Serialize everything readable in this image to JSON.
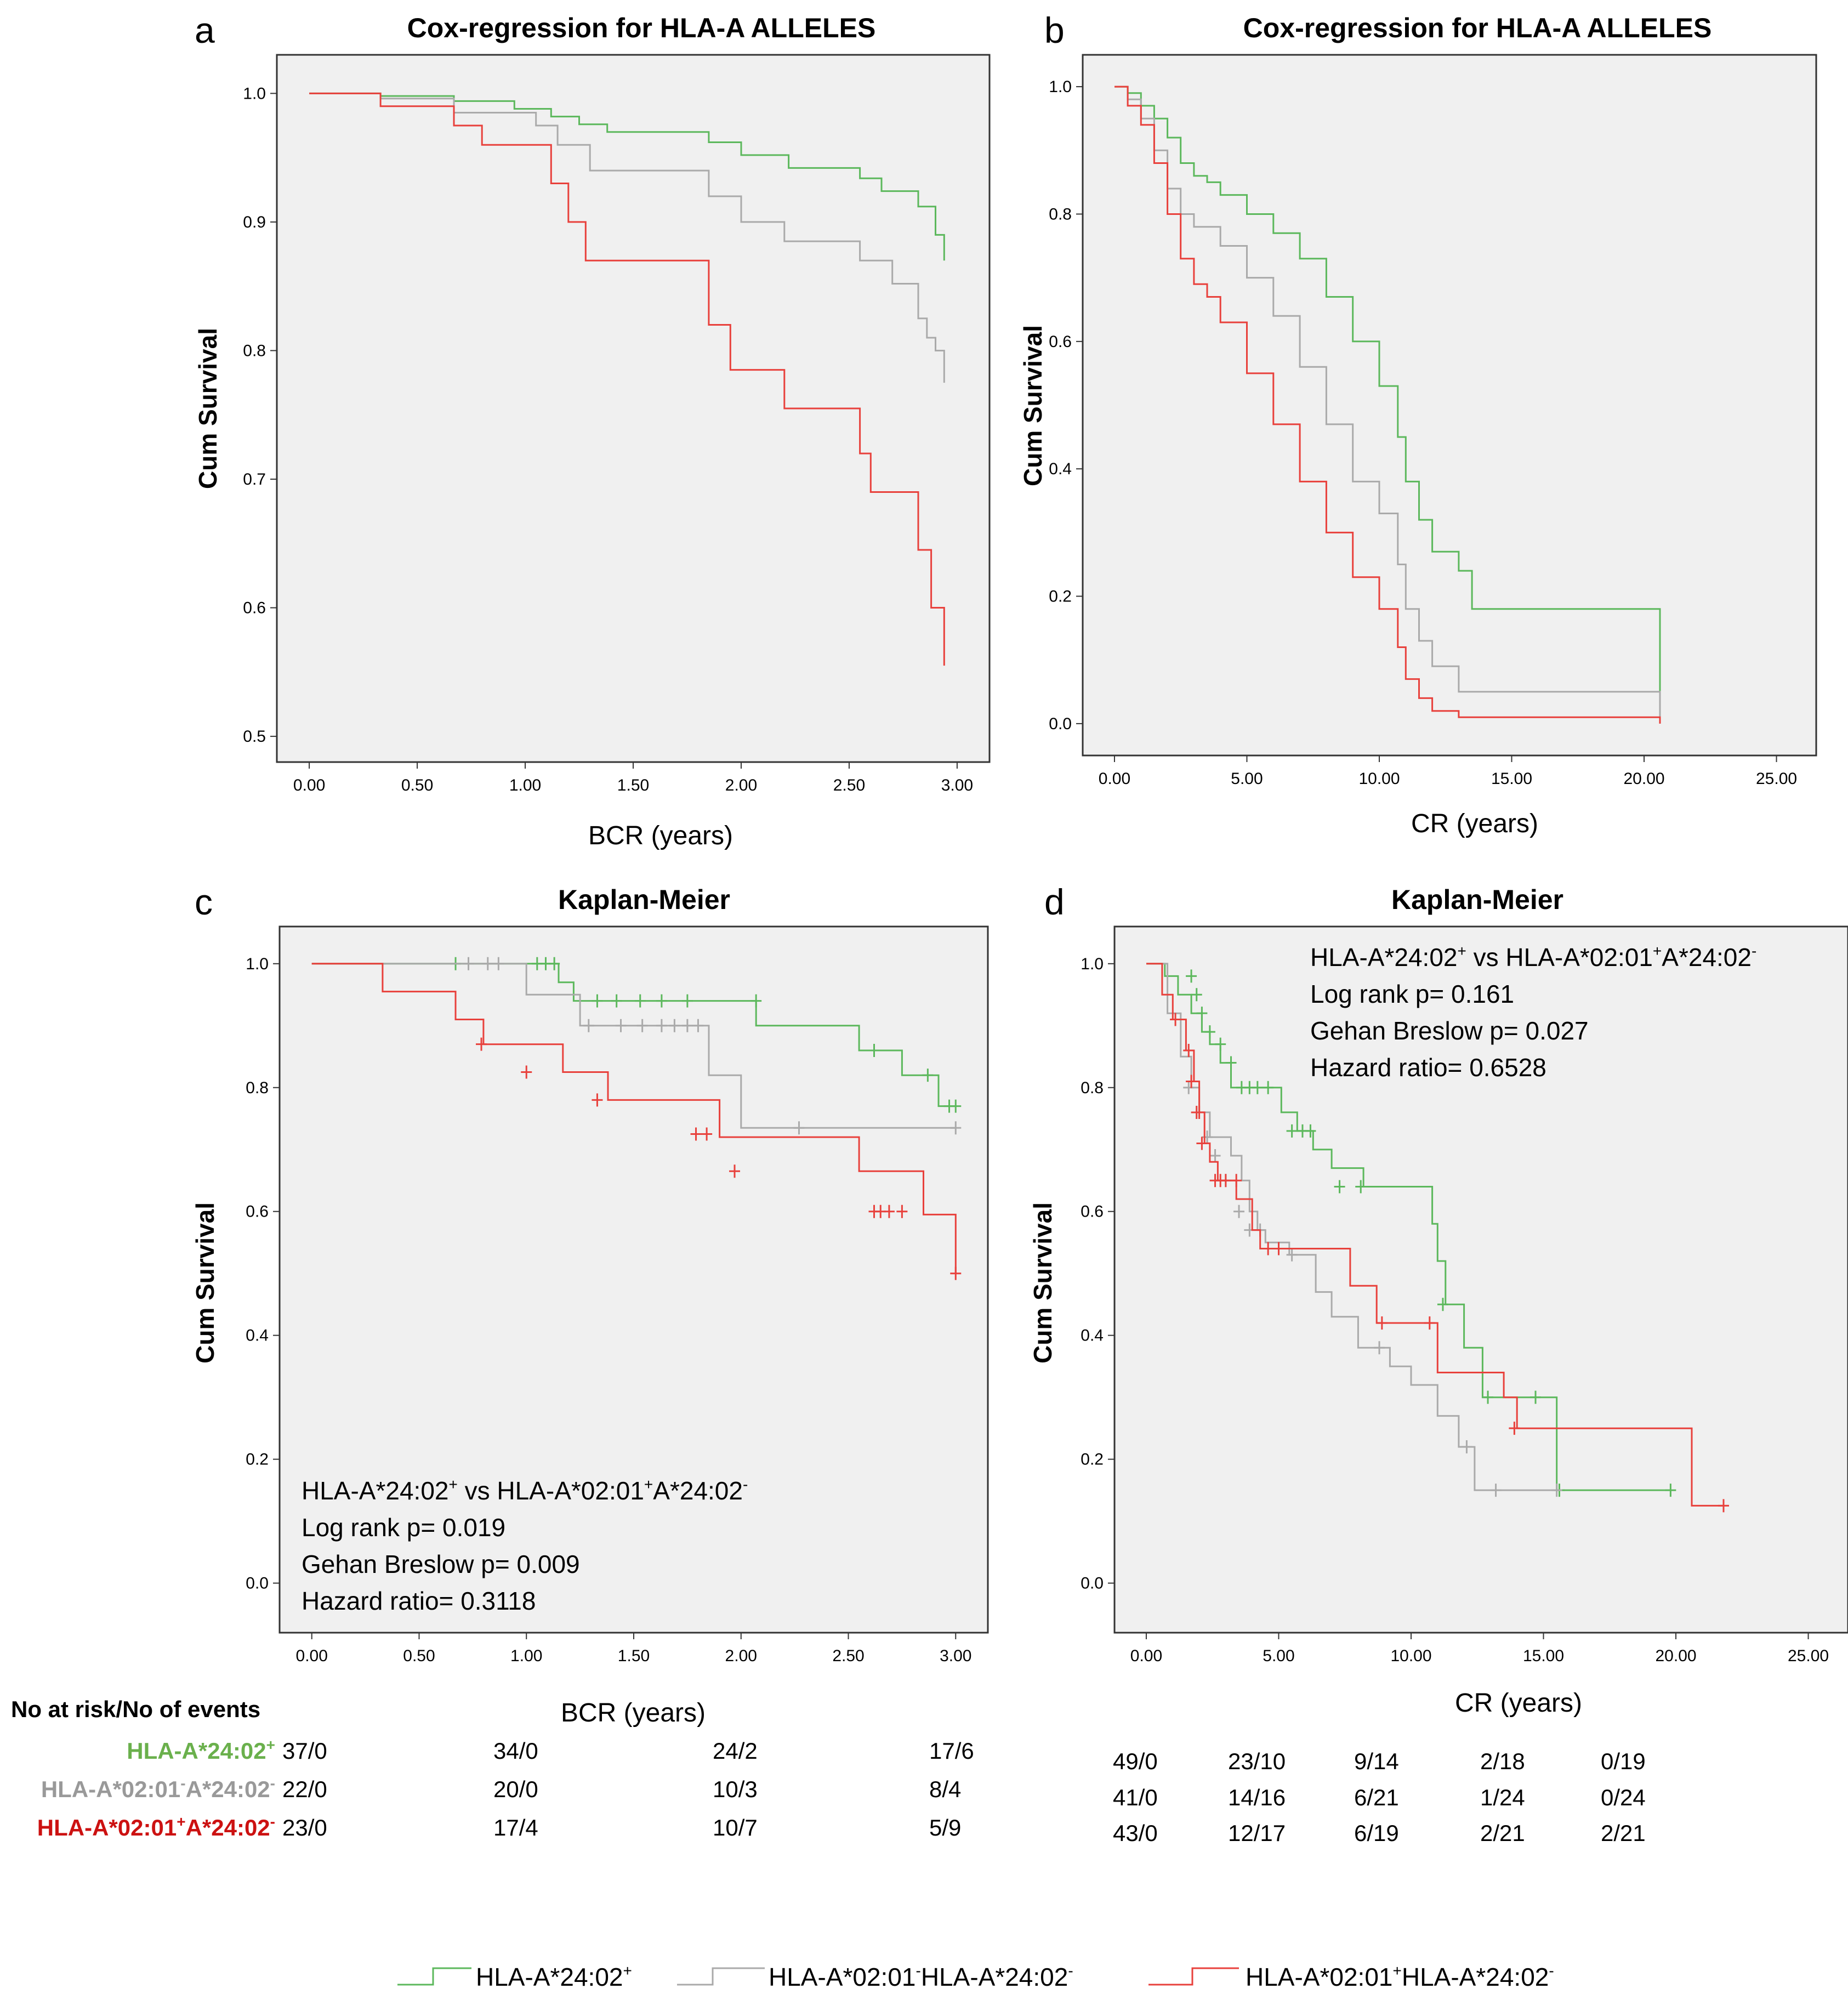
{
  "panels": {
    "a": {
      "letter": "a",
      "title": "Cox-regression for HLA-A ALLELES"
    },
    "b": {
      "letter": "b",
      "title": "Cox-regression for HLA-A ALLELES"
    },
    "c": {
      "letter": "c",
      "title": "Kaplan-Meier"
    },
    "d": {
      "letter": "d",
      "title": "Kaplan-Meier"
    }
  },
  "ylabel": "Cum Survival",
  "xlabel_bcr": "BCR (years)",
  "xlabel_cr": "CR (years)",
  "stats_c": {
    "comparison_parts": [
      "HLA-A*24:02",
      "+",
      " vs HLA-A*02:01",
      "+",
      "A*24:02",
      "-"
    ],
    "logrank": "Log rank p= 0.019",
    "gehan": "Gehan Breslow p= 0.009",
    "hazard": "Hazard ratio= 0.3118"
  },
  "stats_d": {
    "comparison_parts": [
      "HLA-A*24:02",
      "+",
      " vs HLA-A*02:01",
      "+",
      "A*24:02",
      "-"
    ],
    "logrank": "Log rank p= 0.161",
    "gehan": "Gehan Breslow p= 0.027",
    "hazard": "Hazard ratio= 0.6528"
  },
  "risk_table": {
    "header": "No at risk/No of events",
    "rows": [
      {
        "label_parts": [
          "HLA-A*24:02",
          "+"
        ],
        "color": "#6ab04c"
      },
      {
        "label_parts": [
          "HLA-A*02:01",
          "-",
          "A*24:02",
          "-"
        ],
        "color": "#999999"
      },
      {
        "label_parts": [
          "HLA-A*02:01",
          "+",
          "A*24:02",
          "-"
        ],
        "color": "#cc1111"
      }
    ],
    "bcr": [
      [
        "37/0",
        "34/0",
        "24/2",
        "17/6"
      ],
      [
        "22/0",
        "20/0",
        "10/3",
        "8/4"
      ],
      [
        "23/0",
        "17/4",
        "10/7",
        "5/9"
      ]
    ],
    "cr": [
      [
        "49/0",
        "23/10",
        "9/14",
        "2/18",
        "0/19"
      ],
      [
        "41/0",
        "14/16",
        "6/21",
        "1/24",
        "0/24"
      ],
      [
        "43/0",
        "12/17",
        "6/19",
        "2/21",
        "2/21"
      ]
    ]
  },
  "legend": [
    {
      "label_parts": [
        "HLA-A*24:02",
        "+"
      ],
      "color": "#5cb85c"
    },
    {
      "label_parts": [
        "HLA-A*02:01",
        "-",
        "HLA-A*24:02",
        "-"
      ],
      "color": "#aaaaaa"
    },
    {
      "label_parts": [
        "HLA-A*02:01",
        "+",
        "HLA-A*24:02",
        "-"
      ],
      "color": "#e8413c"
    }
  ],
  "colors": {
    "green": "#5cb85c",
    "grey": "#aaaaaa",
    "red": "#e8413c",
    "plot_bg": "#f0f0f0"
  },
  "chart_data": [
    {
      "id": "a",
      "type": "line",
      "step": true,
      "title": "Cox-regression for HLA-A ALLELES",
      "xlabel": "BCR (years)",
      "ylabel": "Cum Survival",
      "xlim": [
        -0.15,
        3.15
      ],
      "ylim": [
        0.48,
        1.03
      ],
      "xticks": [
        0,
        0.5,
        1,
        1.5,
        2,
        2.5,
        3
      ],
      "xtick_labels": [
        "0.00",
        "0.50",
        "1.00",
        "1.50",
        "2.00",
        "2.50",
        "3.00"
      ],
      "yticks": [
        0.5,
        0.6,
        0.7,
        0.8,
        0.9,
        1.0
      ],
      "ytick_labels": [
        "0.5",
        "0.6",
        "0.7",
        "0.8",
        "0.9",
        "1.0"
      ],
      "series": [
        {
          "name": "HLA-A*24:02+",
          "color": "green",
          "x": [
            0,
            0.33,
            0.67,
            0.95,
            1.12,
            1.25,
            1.38,
            1.85,
            2.0,
            2.22,
            2.55,
            2.65,
            2.82,
            2.9,
            2.94
          ],
          "y": [
            1.0,
            0.998,
            0.994,
            0.988,
            0.982,
            0.976,
            0.97,
            0.962,
            0.952,
            0.942,
            0.934,
            0.924,
            0.912,
            0.89,
            0.87
          ]
        },
        {
          "name": "HLA-A*02:01-A*24:02-",
          "color": "grey",
          "x": [
            0,
            0.33,
            0.67,
            1.05,
            1.15,
            1.3,
            1.85,
            2.0,
            2.2,
            2.55,
            2.7,
            2.82,
            2.86,
            2.9,
            2.94
          ],
          "y": [
            1.0,
            0.996,
            0.985,
            0.975,
            0.96,
            0.94,
            0.92,
            0.9,
            0.885,
            0.87,
            0.852,
            0.825,
            0.81,
            0.8,
            0.775
          ]
        },
        {
          "name": "HLA-A*02:01+A*24:02-",
          "color": "red",
          "x": [
            0,
            0.33,
            0.67,
            0.8,
            1.12,
            1.2,
            1.28,
            1.4,
            1.85,
            1.95,
            2.2,
            2.55,
            2.6,
            2.82,
            2.88,
            2.94
          ],
          "y": [
            1.0,
            0.99,
            0.975,
            0.96,
            0.93,
            0.9,
            0.87,
            0.87,
            0.82,
            0.785,
            0.755,
            0.72,
            0.69,
            0.645,
            0.6,
            0.555
          ]
        }
      ]
    },
    {
      "id": "b",
      "type": "line",
      "step": true,
      "title": "Cox-regression for HLA-A ALLELES",
      "xlabel": "CR (years)",
      "ylabel": "Cum Survival",
      "xlim": [
        -1.2,
        26.5
      ],
      "ylim": [
        -0.05,
        1.05
      ],
      "xticks": [
        0,
        5,
        10,
        15,
        20,
        25
      ],
      "xtick_labels": [
        "0.00",
        "5.00",
        "10.00",
        "15.00",
        "20.00",
        "25.00"
      ],
      "yticks": [
        0.0,
        0.2,
        0.4,
        0.6,
        0.8,
        1.0
      ],
      "ytick_labels": [
        "0.0",
        "0.2",
        "0.4",
        "0.6",
        "0.8",
        "1.0"
      ],
      "series": [
        {
          "name": "HLA-A*24:02+",
          "color": "green",
          "x": [
            0,
            0.5,
            1,
            1.5,
            2,
            2.5,
            3,
            3.5,
            4,
            5,
            6,
            7,
            8,
            9,
            10,
            10.7,
            11,
            11.5,
            12,
            13,
            13.5,
            20.6
          ],
          "y": [
            1.0,
            0.99,
            0.97,
            0.95,
            0.92,
            0.88,
            0.86,
            0.85,
            0.83,
            0.8,
            0.77,
            0.73,
            0.67,
            0.6,
            0.53,
            0.45,
            0.38,
            0.32,
            0.27,
            0.24,
            0.18,
            0.0
          ]
        },
        {
          "name": "HLA-A*02:01-A*24:02-",
          "color": "grey",
          "x": [
            0,
            0.5,
            1,
            1.5,
            2,
            2.5,
            3,
            4,
            5,
            6,
            7,
            8,
            9,
            10,
            10.7,
            11,
            11.5,
            12,
            13,
            20.6
          ],
          "y": [
            1.0,
            0.98,
            0.95,
            0.9,
            0.84,
            0.8,
            0.78,
            0.75,
            0.7,
            0.64,
            0.56,
            0.47,
            0.38,
            0.33,
            0.25,
            0.18,
            0.13,
            0.09,
            0.05,
            0.0
          ]
        },
        {
          "name": "HLA-A*02:01+A*24:02-",
          "color": "red",
          "x": [
            0,
            0.5,
            1,
            1.5,
            2,
            2.5,
            3,
            3.5,
            4,
            5,
            6,
            7,
            8,
            9,
            10,
            10.7,
            11,
            11.5,
            12,
            13,
            20.6
          ],
          "y": [
            1.0,
            0.97,
            0.94,
            0.88,
            0.8,
            0.73,
            0.69,
            0.67,
            0.63,
            0.55,
            0.47,
            0.38,
            0.3,
            0.23,
            0.18,
            0.12,
            0.07,
            0.04,
            0.02,
            0.01,
            0.0
          ]
        }
      ]
    },
    {
      "id": "c",
      "type": "line",
      "step": true,
      "title": "Kaplan-Meier",
      "xlabel": "BCR (years)",
      "ylabel": "Cum Survival",
      "xlim": [
        -0.15,
        3.15
      ],
      "ylim": [
        -0.08,
        1.06
      ],
      "xticks": [
        0,
        0.5,
        1,
        1.5,
        2,
        2.5,
        3
      ],
      "xtick_labels": [
        "0.00",
        "0.50",
        "1.00",
        "1.50",
        "2.00",
        "2.50",
        "3.00"
      ],
      "yticks": [
        0.0,
        0.2,
        0.4,
        0.6,
        0.8,
        1.0
      ],
      "ytick_labels": [
        "0.0",
        "0.2",
        "0.4",
        "0.6",
        "0.8",
        "1.0"
      ],
      "series": [
        {
          "name": "HLA-A*24:02+",
          "color": "green",
          "x": [
            0,
            1.15,
            1.22,
            2.07,
            2.55,
            2.75,
            2.92,
            3.0
          ],
          "y": [
            1.0,
            0.97,
            0.94,
            0.9,
            0.86,
            0.82,
            0.77,
            0.77
          ],
          "censor_x": [
            0.67,
            1.05,
            1.09,
            1.13,
            1.33,
            1.42,
            1.53,
            1.63,
            1.75,
            2.07,
            2.62,
            2.87,
            2.97,
            3.0
          ],
          "censor_y": [
            1.0,
            1.0,
            1.0,
            1.0,
            0.94,
            0.94,
            0.94,
            0.94,
            0.94,
            0.94,
            0.86,
            0.82,
            0.77,
            0.77
          ]
        },
        {
          "name": "HLA-A*02:01-A*24:02-",
          "color": "grey",
          "x": [
            0,
            1.0,
            1.25,
            1.85,
            2.0,
            3.0
          ],
          "y": [
            1.0,
            0.95,
            0.9,
            0.82,
            0.735,
            0.735
          ],
          "censor_x": [
            0.73,
            0.82,
            0.87,
            1.29,
            1.44,
            1.54,
            1.63,
            1.69,
            1.75,
            1.8,
            2.27,
            3.0
          ],
          "censor_y": [
            1.0,
            1.0,
            1.0,
            0.9,
            0.9,
            0.9,
            0.9,
            0.9,
            0.9,
            0.9,
            0.735,
            0.735
          ]
        },
        {
          "name": "HLA-A*02:01+A*24:02-",
          "color": "red",
          "x": [
            0,
            0.33,
            0.67,
            0.8,
            1.17,
            1.38,
            1.9,
            2.55,
            2.85,
            3.0
          ],
          "y": [
            1.0,
            0.955,
            0.91,
            0.87,
            0.825,
            0.78,
            0.72,
            0.665,
            0.595,
            0.5
          ],
          "censor_x": [
            0.79,
            1.0,
            1.33,
            1.79,
            1.84,
            1.97,
            2.62,
            2.65,
            2.69,
            2.75,
            3.0
          ],
          "censor_y": [
            0.87,
            0.825,
            0.78,
            0.725,
            0.725,
            0.665,
            0.6,
            0.6,
            0.6,
            0.6,
            0.5
          ]
        }
      ]
    },
    {
      "id": "d",
      "type": "line",
      "step": true,
      "title": "Kaplan-Meier",
      "xlabel": "CR (years)",
      "ylabel": "Cum Survival",
      "xlim": [
        -1.2,
        26.5
      ],
      "ylim": [
        -0.08,
        1.06
      ],
      "xticks": [
        0,
        5,
        10,
        15,
        20,
        25
      ],
      "xtick_labels": [
        "0.00",
        "5.00",
        "10.00",
        "15.00",
        "20.00",
        "25.00"
      ],
      "yticks": [
        0.0,
        0.2,
        0.4,
        0.6,
        0.8,
        1.0
      ],
      "ytick_labels": [
        "0.0",
        "0.2",
        "0.4",
        "0.6",
        "0.8",
        "1.0"
      ],
      "series": [
        {
          "name": "HLA-A*24:02+",
          "color": "green",
          "x": [
            0,
            0.7,
            1.2,
            1.7,
            2.1,
            2.4,
            2.8,
            3.2,
            4.5,
            5.1,
            5.7,
            6.3,
            7.0,
            8.2,
            10.8,
            11.0,
            11.3,
            12.0,
            12.7,
            15.5,
            19.8
          ],
          "y": [
            1.0,
            0.98,
            0.95,
            0.92,
            0.89,
            0.87,
            0.84,
            0.8,
            0.8,
            0.76,
            0.73,
            0.7,
            0.67,
            0.64,
            0.58,
            0.52,
            0.45,
            0.38,
            0.3,
            0.15,
            0.15
          ],
          "censor_x": [
            1.7,
            1.9,
            2.1,
            2.4,
            2.8,
            3.2,
            3.6,
            3.9,
            4.2,
            4.6,
            5.5,
            5.9,
            6.2,
            7.3,
            8.1,
            11.2,
            12.9,
            14.7,
            15.6,
            19.8
          ],
          "censor_y": [
            0.98,
            0.95,
            0.92,
            0.89,
            0.87,
            0.84,
            0.8,
            0.8,
            0.8,
            0.8,
            0.73,
            0.73,
            0.73,
            0.64,
            0.64,
            0.45,
            0.3,
            0.3,
            0.15,
            0.15
          ]
        },
        {
          "name": "HLA-A*02:01-A*24:02-",
          "color": "grey",
          "x": [
            0,
            0.8,
            1.3,
            1.7,
            2.0,
            2.4,
            3.2,
            3.6,
            3.9,
            4.2,
            4.5,
            5.4,
            6.4,
            7.0,
            8.0,
            9.2,
            10.0,
            11.0,
            11.8,
            12.4,
            15.5
          ],
          "y": [
            1.0,
            0.92,
            0.85,
            0.8,
            0.76,
            0.72,
            0.69,
            0.65,
            0.6,
            0.57,
            0.55,
            0.53,
            0.47,
            0.43,
            0.38,
            0.35,
            0.32,
            0.27,
            0.22,
            0.15,
            0.15
          ],
          "censor_x": [
            1.6,
            1.9,
            2.3,
            2.6,
            3.0,
            3.5,
            3.9,
            4.3,
            5.5,
            8.8,
            12.1,
            13.2,
            15.5
          ],
          "censor_y": [
            0.8,
            0.76,
            0.72,
            0.69,
            0.65,
            0.6,
            0.57,
            0.57,
            0.53,
            0.38,
            0.22,
            0.15,
            0.15
          ]
        },
        {
          "name": "HLA-A*02:01+A*24:02-",
          "color": "red",
          "x": [
            0,
            0.6,
            1.0,
            1.5,
            1.8,
            2.0,
            2.2,
            2.4,
            2.7,
            3.1,
            3.4,
            4.0,
            4.3,
            7.0,
            7.7,
            8.7,
            10.7,
            11.0,
            13.5,
            14.0,
            20.6,
            21.8
          ],
          "y": [
            1.0,
            0.95,
            0.91,
            0.86,
            0.81,
            0.76,
            0.71,
            0.68,
            0.65,
            0.65,
            0.62,
            0.57,
            0.54,
            0.54,
            0.48,
            0.42,
            0.42,
            0.34,
            0.3,
            0.25,
            0.125,
            0.125
          ],
          "censor_x": [
            1.1,
            1.6,
            1.7,
            1.9,
            2.0,
            2.1,
            2.6,
            2.8,
            3.0,
            3.4,
            4.6,
            5.0,
            8.9,
            10.7,
            13.9,
            21.8
          ],
          "censor_y": [
            0.91,
            0.86,
            0.81,
            0.76,
            0.76,
            0.71,
            0.65,
            0.65,
            0.65,
            0.65,
            0.54,
            0.54,
            0.42,
            0.42,
            0.25,
            0.125
          ]
        }
      ]
    }
  ]
}
